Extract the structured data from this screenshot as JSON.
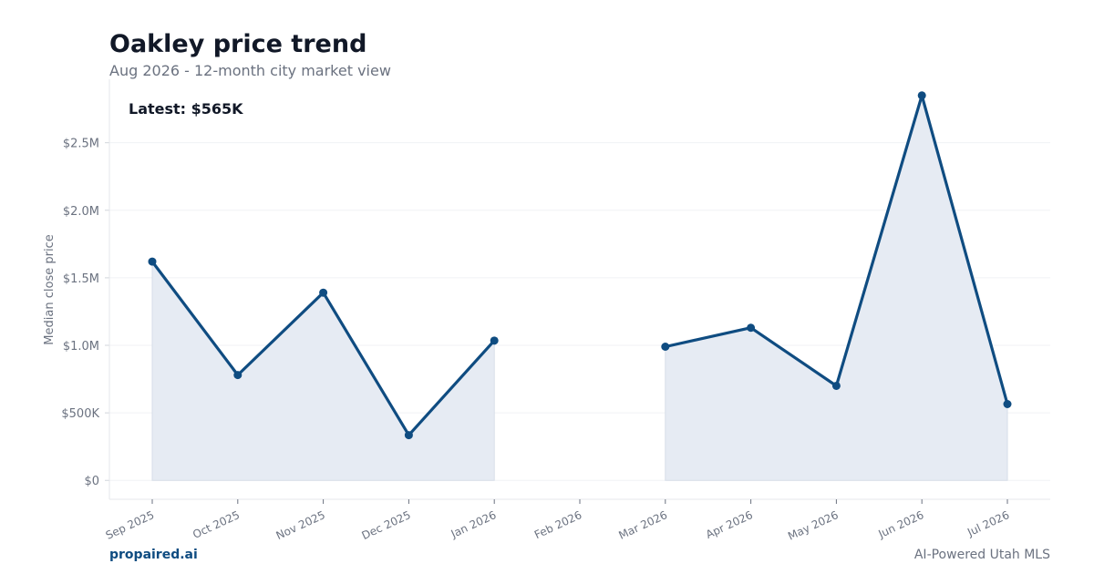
{
  "header": {
    "title": "Oakley price trend",
    "subtitle": "Aug 2026 - 12-month city market view"
  },
  "footer": {
    "brand": "propaired.ai",
    "tagline": "AI-Powered Utah MLS"
  },
  "colors": {
    "line": "#0f4c81",
    "area": "#e6ebf3",
    "grid": "#f0f2f5",
    "axis": "#e5e7eb"
  },
  "chart_data": {
    "type": "line",
    "title": "Oakley price trend",
    "subtitle": "Aug 2026 - 12-month city market view",
    "xlabel": "",
    "ylabel": "Median close price",
    "annotation": "Latest: $565K",
    "categories": [
      "Sep 2025",
      "Oct 2025",
      "Nov 2025",
      "Dec 2025",
      "Jan 2026",
      "Feb 2026",
      "Mar 2026",
      "Apr 2026",
      "May 2026",
      "Jun 2026",
      "Jul 2026"
    ],
    "series": [
      {
        "values": [
          1620000,
          780000,
          1390000,
          335000,
          1035000,
          null,
          990000,
          1130000,
          700000,
          2850000,
          565000
        ]
      }
    ],
    "yticks": [
      0,
      500000,
      1000000,
      1500000,
      2000000,
      2500000
    ],
    "ytick_labels": [
      "$0",
      "$500K",
      "$1.0M",
      "$1.5M",
      "$2.0M",
      "$2.5M"
    ],
    "ylim": [
      -140000,
      2970000
    ],
    "grid": true,
    "legend": "none"
  }
}
